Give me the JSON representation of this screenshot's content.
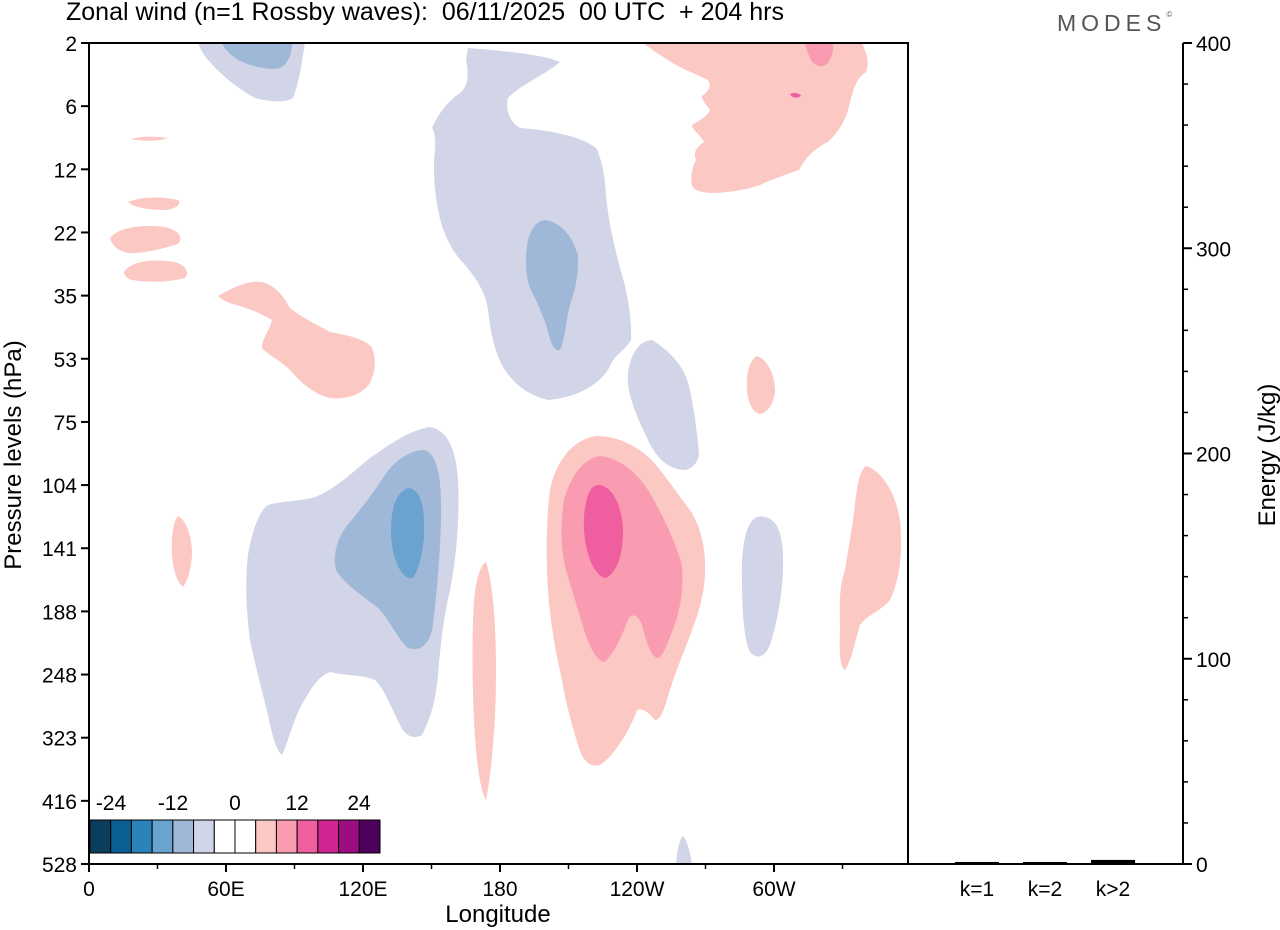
{
  "chart_data": [
    {
      "type": "heatmap",
      "title": "Zonal wind (n=1 Rossby waves):  06/11/2025  00 UTC  + 204 hrs",
      "xlabel": "Longitude",
      "ylabel": "Pressure levels (hPa)",
      "x_ticks": [
        "0",
        "60E",
        "120E",
        "180",
        "120W",
        "60W"
      ],
      "y_ticks": [
        "2",
        "6",
        "12",
        "22",
        "35",
        "53",
        "75",
        "104",
        "141",
        "188",
        "248",
        "323",
        "416",
        "528"
      ],
      "colorbar": {
        "labels": [
          "-24",
          "-12",
          "0",
          "12",
          "24"
        ],
        "colors": [
          "#0b3d5c",
          "#0b5f93",
          "#2b83ba",
          "#6aa3cf",
          "#a0b8d8",
          "#d2d5e7",
          "#ffffff",
          "#ffffff",
          "#fbc8c4",
          "#f99bb1",
          "#ef5e9e",
          "#cf2590",
          "#9b0d80",
          "#4d005c"
        ]
      },
      "contours": [
        {
          "name": "neg-upper-west",
          "level": "weak-negative",
          "color": "#d2d5e7"
        },
        {
          "name": "neg-upper-west-core",
          "level": "moderate-negative",
          "color": "#a0b8d8"
        },
        {
          "name": "neg-central-tongue",
          "level": "weak-negative",
          "color": "#d2d5e7"
        },
        {
          "name": "neg-central-tongue-core",
          "level": "moderate-negative",
          "color": "#a0b8d8"
        },
        {
          "name": "neg-lower-west",
          "level": "weak-negative",
          "color": "#d2d5e7"
        },
        {
          "name": "neg-lower-west-core",
          "level": "moderate-negative",
          "color": "#a0b8d8"
        },
        {
          "name": "neg-lower-west-max",
          "level": "strong-negative",
          "color": "#6aa3cf"
        },
        {
          "name": "pos-lower-central",
          "level": "weak-positive",
          "color": "#fbc8c4"
        },
        {
          "name": "pos-lower-central-core",
          "level": "moderate-positive",
          "color": "#f99bb1"
        },
        {
          "name": "pos-lower-central-max",
          "level": "strong-positive",
          "color": "#ef5e9e"
        },
        {
          "name": "pos-upper-east",
          "level": "weak-positive",
          "color": "#fbc8c4"
        },
        {
          "name": "pos-upper-east-core",
          "level": "moderate-positive",
          "color": "#f99bb1"
        }
      ]
    },
    {
      "type": "bar",
      "ylabel": "Energy (J/kg)",
      "categories": [
        "k=1",
        "k=2",
        "k>2"
      ],
      "values": [
        0.5,
        0.5,
        1.5
      ],
      "ylim": [
        0,
        400
      ],
      "y_ticks": [
        "0",
        "100",
        "200",
        "300",
        "400"
      ]
    }
  ],
  "logo": "MODES"
}
